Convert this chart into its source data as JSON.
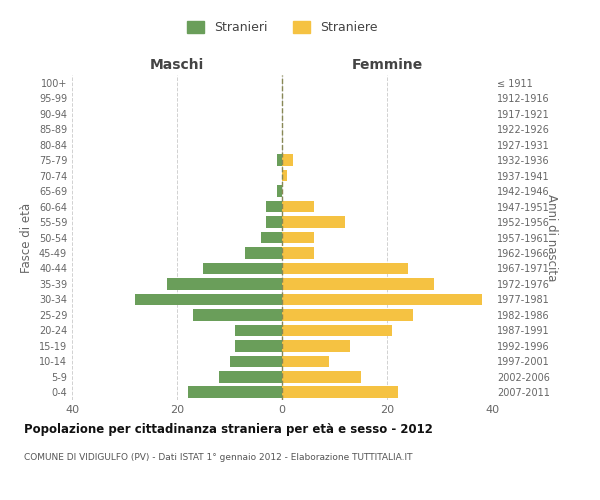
{
  "age_groups": [
    "0-4",
    "5-9",
    "10-14",
    "15-19",
    "20-24",
    "25-29",
    "30-34",
    "35-39",
    "40-44",
    "45-49",
    "50-54",
    "55-59",
    "60-64",
    "65-69",
    "70-74",
    "75-79",
    "80-84",
    "85-89",
    "90-94",
    "95-99",
    "100+"
  ],
  "birth_years": [
    "2007-2011",
    "2002-2006",
    "1997-2001",
    "1992-1996",
    "1987-1991",
    "1982-1986",
    "1977-1981",
    "1972-1976",
    "1967-1971",
    "1962-1966",
    "1957-1961",
    "1952-1956",
    "1947-1951",
    "1942-1946",
    "1937-1941",
    "1932-1936",
    "1927-1931",
    "1922-1926",
    "1917-1921",
    "1912-1916",
    "≤ 1911"
  ],
  "maschi": [
    18,
    12,
    10,
    9,
    9,
    17,
    28,
    22,
    15,
    7,
    4,
    3,
    3,
    1,
    0,
    1,
    0,
    0,
    0,
    0,
    0
  ],
  "femmine": [
    22,
    15,
    9,
    13,
    21,
    25,
    38,
    29,
    24,
    6,
    6,
    12,
    6,
    0,
    1,
    2,
    0,
    0,
    0,
    0,
    0
  ],
  "maschi_color": "#6a9e5a",
  "femmine_color": "#f5c242",
  "background_color": "#ffffff",
  "grid_color": "#cccccc",
  "title": "Popolazione per cittadinanza straniera per età e sesso - 2012",
  "subtitle": "COMUNE DI VIDIGULFO (PV) - Dati ISTAT 1° gennaio 2012 - Elaborazione TUTTITALIA.IT",
  "xlabel_left": "Maschi",
  "xlabel_right": "Femmine",
  "ylabel_left": "Fasce di età",
  "ylabel_right": "Anni di nascita",
  "legend_maschi": "Stranieri",
  "legend_femmine": "Straniere",
  "xlim": 40
}
